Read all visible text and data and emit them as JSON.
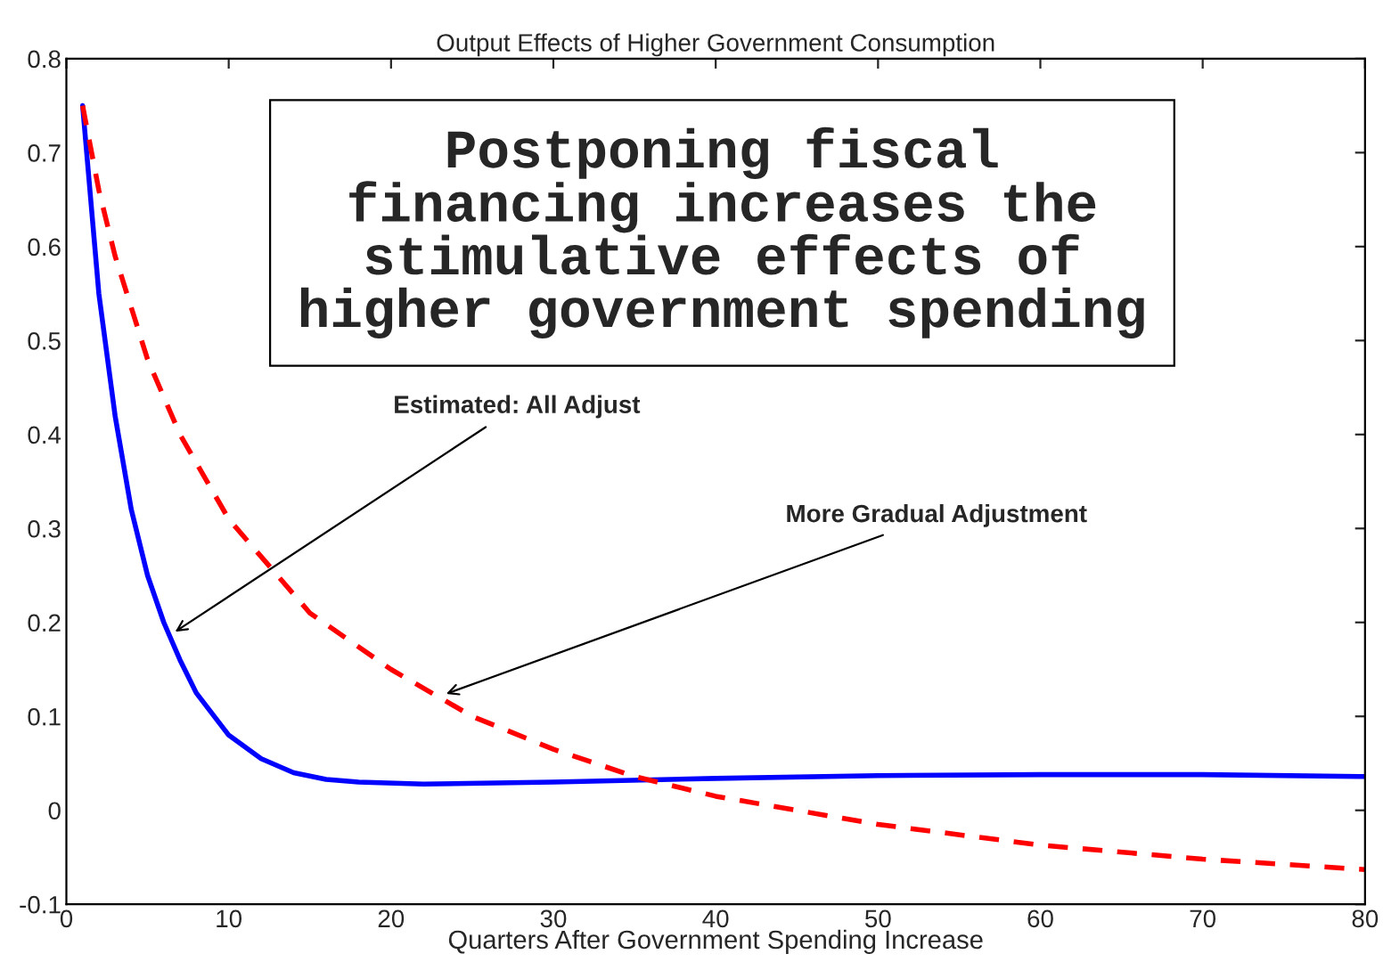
{
  "chart_data": {
    "type": "line",
    "title": "Output Effects of Higher Government Consumption",
    "xlabel": "Quarters After Government Spending Increase",
    "xlim": [
      0,
      80
    ],
    "ylim": [
      -0.1,
      0.8
    ],
    "xticks": [
      0,
      10,
      20,
      30,
      40,
      50,
      60,
      70,
      80
    ],
    "yticks": [
      -0.1,
      0,
      0.1,
      0.2,
      0.3,
      0.4,
      0.5,
      0.6,
      0.7,
      0.8
    ],
    "grid": false,
    "legend": false,
    "series": [
      {
        "color": "#0000ff",
        "line_style": "solid",
        "x": [
          1,
          2,
          3,
          4,
          5,
          6,
          7,
          8,
          10,
          12,
          14,
          16,
          18,
          22,
          30,
          40,
          50,
          60,
          70,
          80
        ],
        "values": [
          0.75,
          0.55,
          0.42,
          0.32,
          0.25,
          0.2,
          0.16,
          0.125,
          0.08,
          0.055,
          0.04,
          0.033,
          0.03,
          0.028,
          0.03,
          0.034,
          0.037,
          0.038,
          0.038,
          0.036
        ]
      },
      {
        "color": "#ff0000",
        "line_style": "dashed",
        "x": [
          1,
          2,
          3,
          5,
          7,
          10,
          15,
          20,
          25,
          30,
          35,
          40,
          50,
          60,
          70,
          80
        ],
        "values": [
          0.75,
          0.66,
          0.59,
          0.48,
          0.4,
          0.31,
          0.21,
          0.15,
          0.1,
          0.065,
          0.036,
          0.015,
          -0.015,
          -0.037,
          -0.052,
          -0.063
        ]
      }
    ],
    "annotations": [
      "Postponing fiscal\nfinancing increases the\nstimulative effects of\nhigher government spending",
      {
        "text": "Estimated: All Adjust",
        "x": 6.7,
        "y": 0.19
      },
      {
        "text": "More Gradual Adjustment",
        "x": 23.4,
        "y": 0.124
      }
    ]
  }
}
